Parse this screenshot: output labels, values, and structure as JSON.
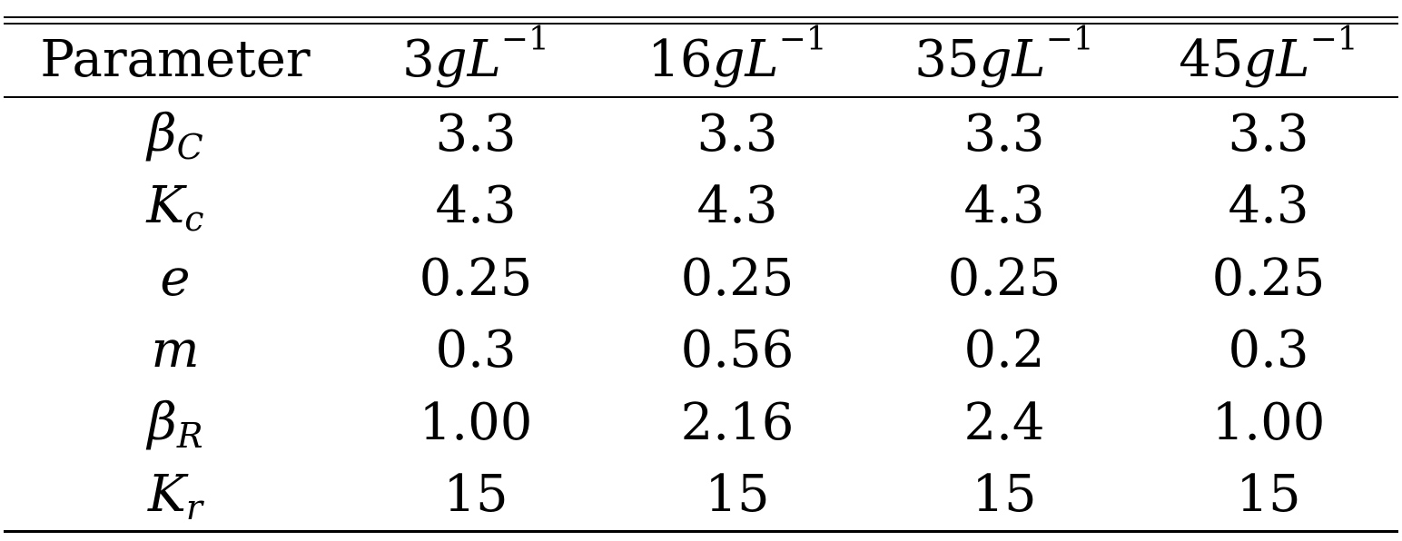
{
  "table": {
    "header": {
      "parameter": "Parameter",
      "columns": [
        {
          "num": "3",
          "var": "gL",
          "exp": "−1"
        },
        {
          "num": "16",
          "var": "gL",
          "exp": "−1"
        },
        {
          "num": "35",
          "var": "gL",
          "exp": "−1"
        },
        {
          "num": "45",
          "var": "gL",
          "exp": "−1"
        }
      ]
    },
    "rows": [
      {
        "symbol": "β",
        "sub": "C",
        "values": [
          "3.3",
          "3.3",
          "3.3",
          "3.3"
        ]
      },
      {
        "symbol": "K",
        "sub": "c",
        "values": [
          "4.3",
          "4.3",
          "4.3",
          "4.3"
        ]
      },
      {
        "symbol": "e",
        "sub": "",
        "values": [
          "0.25",
          "0.25",
          "0.25",
          "0.25"
        ]
      },
      {
        "symbol": "m",
        "sub": "",
        "values": [
          "0.3",
          "0.56",
          "0.2",
          "0.3"
        ]
      },
      {
        "symbol": "β",
        "sub": "R",
        "values": [
          "1.00",
          "2.16",
          "2.4",
          "1.00"
        ]
      },
      {
        "symbol": "K",
        "sub": "r",
        "values": [
          "15",
          "15",
          "15",
          "15"
        ]
      }
    ]
  }
}
